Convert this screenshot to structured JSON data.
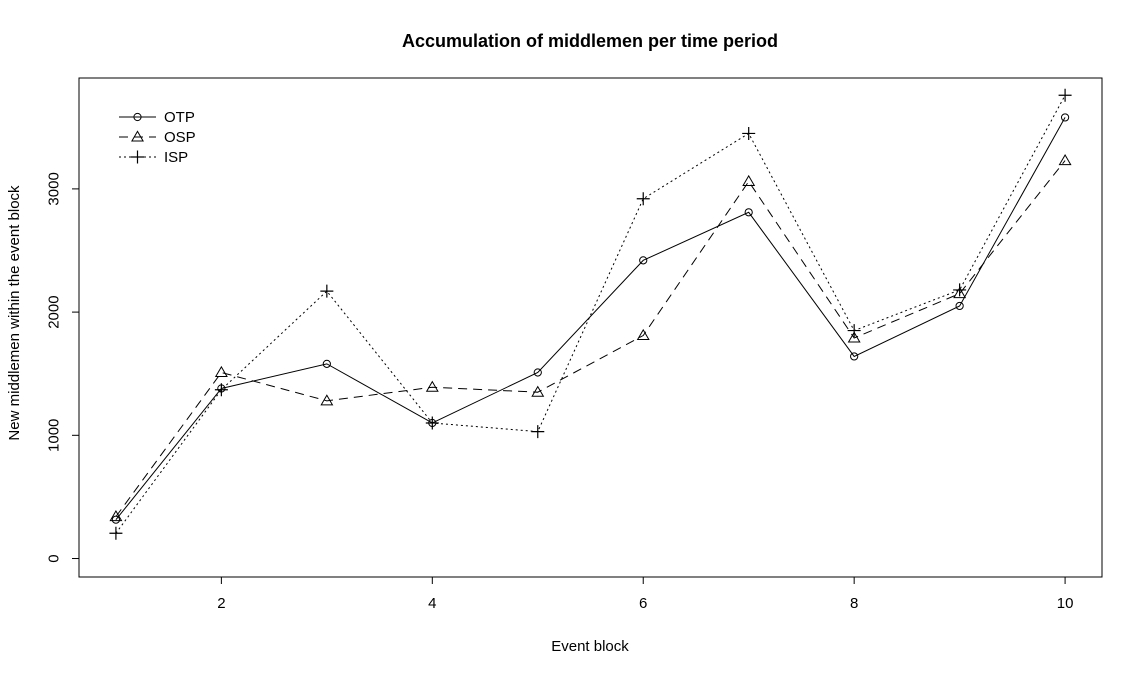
{
  "chart_data": {
    "type": "line",
    "title": "Accumulation of middlemen per time period",
    "xlabel": "Event block",
    "ylabel": "New middlemen within the event block",
    "x": [
      1,
      2,
      3,
      4,
      5,
      6,
      7,
      8,
      9,
      10
    ],
    "xticks": [
      2,
      4,
      6,
      8,
      10
    ],
    "yticks": [
      0,
      1000,
      2000,
      3000
    ],
    "xlim": [
      0.65,
      10.35
    ],
    "ylim": [
      -150,
      3900
    ],
    "grid": false,
    "legend_position": "top-left",
    "series": [
      {
        "name": "OTP",
        "marker": "circle",
        "dash": "solid",
        "values": [
          315,
          1380,
          1580,
          1100,
          1510,
          2420,
          2810,
          1640,
          2050,
          3580
        ]
      },
      {
        "name": "OSP",
        "marker": "triangle",
        "dash": "dashed",
        "values": [
          340,
          1510,
          1280,
          1390,
          1350,
          1810,
          3060,
          1790,
          2150,
          3230
        ]
      },
      {
        "name": "ISP",
        "marker": "plus",
        "dash": "dotted",
        "values": [
          205,
          1370,
          2170,
          1100,
          1030,
          2920,
          3450,
          1850,
          2180,
          3760
        ]
      }
    ]
  }
}
